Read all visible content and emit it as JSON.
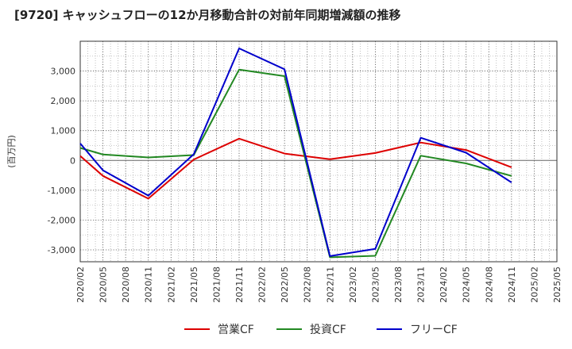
{
  "title": "[9720]  キャッシュフローの12か月移動合計の対前年同期増減額の推移",
  "chart_data": {
    "type": "line",
    "title": "[9720]  キャッシュフローの12か月移動合計の対前年同期増減額の推移",
    "ylabel": "(百万円)",
    "xlabel": "",
    "ylim": [
      -3400,
      4000
    ],
    "yticks": [
      3000,
      2000,
      1000,
      0,
      -1000,
      -2000,
      -3000
    ],
    "ytick_labels": [
      "3,000",
      "2,000",
      "1,000",
      "0",
      "-1,000",
      "-2,000",
      "-3,000"
    ],
    "x_categories": [
      "2020/02",
      "2020/05",
      "2020/08",
      "2020/11",
      "2021/02",
      "2021/05",
      "2021/08",
      "2021/11",
      "2022/02",
      "2022/05",
      "2022/08",
      "2022/11",
      "2023/02",
      "2023/05",
      "2023/08",
      "2023/11",
      "2024/02",
      "2024/05",
      "2024/08",
      "2024/11",
      "2025/02",
      "2025/05"
    ],
    "grid": true,
    "legend_position": "bottom",
    "series": [
      {
        "name": "営業CF",
        "color": "#dd0000",
        "points": [
          [
            "2020/02",
            150
          ],
          [
            "2020/05",
            -520
          ],
          [
            "2020/11",
            -1280
          ],
          [
            "2021/05",
            30
          ],
          [
            "2021/11",
            730
          ],
          [
            "2022/05",
            230
          ],
          [
            "2022/11",
            40
          ],
          [
            "2023/05",
            250
          ],
          [
            "2023/11",
            600
          ],
          [
            "2024/05",
            350
          ],
          [
            "2024/11",
            -230
          ]
        ]
      },
      {
        "name": "投資CF",
        "color": "#228822",
        "points": [
          [
            "2020/02",
            420
          ],
          [
            "2020/05",
            200
          ],
          [
            "2020/11",
            100
          ],
          [
            "2021/05",
            180
          ],
          [
            "2021/11",
            3050
          ],
          [
            "2022/05",
            2830
          ],
          [
            "2022/11",
            -3250
          ],
          [
            "2023/05",
            -3200
          ],
          [
            "2023/11",
            160
          ],
          [
            "2024/05",
            -100
          ],
          [
            "2024/11",
            -520
          ]
        ]
      },
      {
        "name": "フリーCF",
        "color": "#0000cc",
        "points": [
          [
            "2020/02",
            570
          ],
          [
            "2020/05",
            -330
          ],
          [
            "2020/11",
            -1180
          ],
          [
            "2021/05",
            210
          ],
          [
            "2021/11",
            3760
          ],
          [
            "2022/05",
            3060
          ],
          [
            "2022/11",
            -3210
          ],
          [
            "2023/05",
            -2970
          ],
          [
            "2023/11",
            760
          ],
          [
            "2024/05",
            260
          ],
          [
            "2024/11",
            -740
          ]
        ]
      }
    ]
  }
}
